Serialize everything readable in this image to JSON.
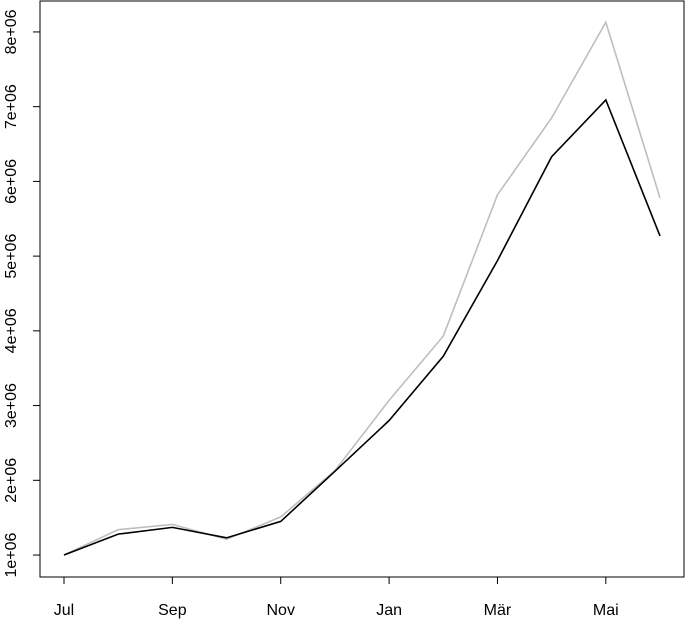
{
  "chart_data": {
    "type": "line",
    "categories": [
      "Jul",
      null,
      "Sep",
      null,
      "Nov",
      null,
      "Jan",
      null,
      "Mär",
      null,
      "Mai",
      null
    ],
    "series": [
      {
        "color": "#bebebe",
        "values": [
          1000000,
          1340000,
          1410000,
          1210000,
          1510000,
          2130000,
          3070000,
          3930000,
          5820000,
          6850000,
          8130000,
          5780000
        ]
      },
      {
        "color": "#000000",
        "values": [
          1000000,
          1280000,
          1370000,
          1230000,
          1450000,
          2120000,
          2800000,
          3660000,
          4940000,
          6330000,
          7090000,
          5270000
        ]
      }
    ],
    "ylim": [
      706000,
      8414000
    ],
    "yticks": [
      {
        "value": 1000000,
        "label": "1e+06"
      },
      {
        "value": 2000000,
        "label": "2e+06"
      },
      {
        "value": 3000000,
        "label": "3e+06"
      },
      {
        "value": 4000000,
        "label": "4e+06"
      },
      {
        "value": 5000000,
        "label": "5e+06"
      },
      {
        "value": 6000000,
        "label": "6e+06"
      },
      {
        "value": 7000000,
        "label": "7e+06"
      },
      {
        "value": 8000000,
        "label": "8e+06"
      }
    ],
    "grid": false
  }
}
